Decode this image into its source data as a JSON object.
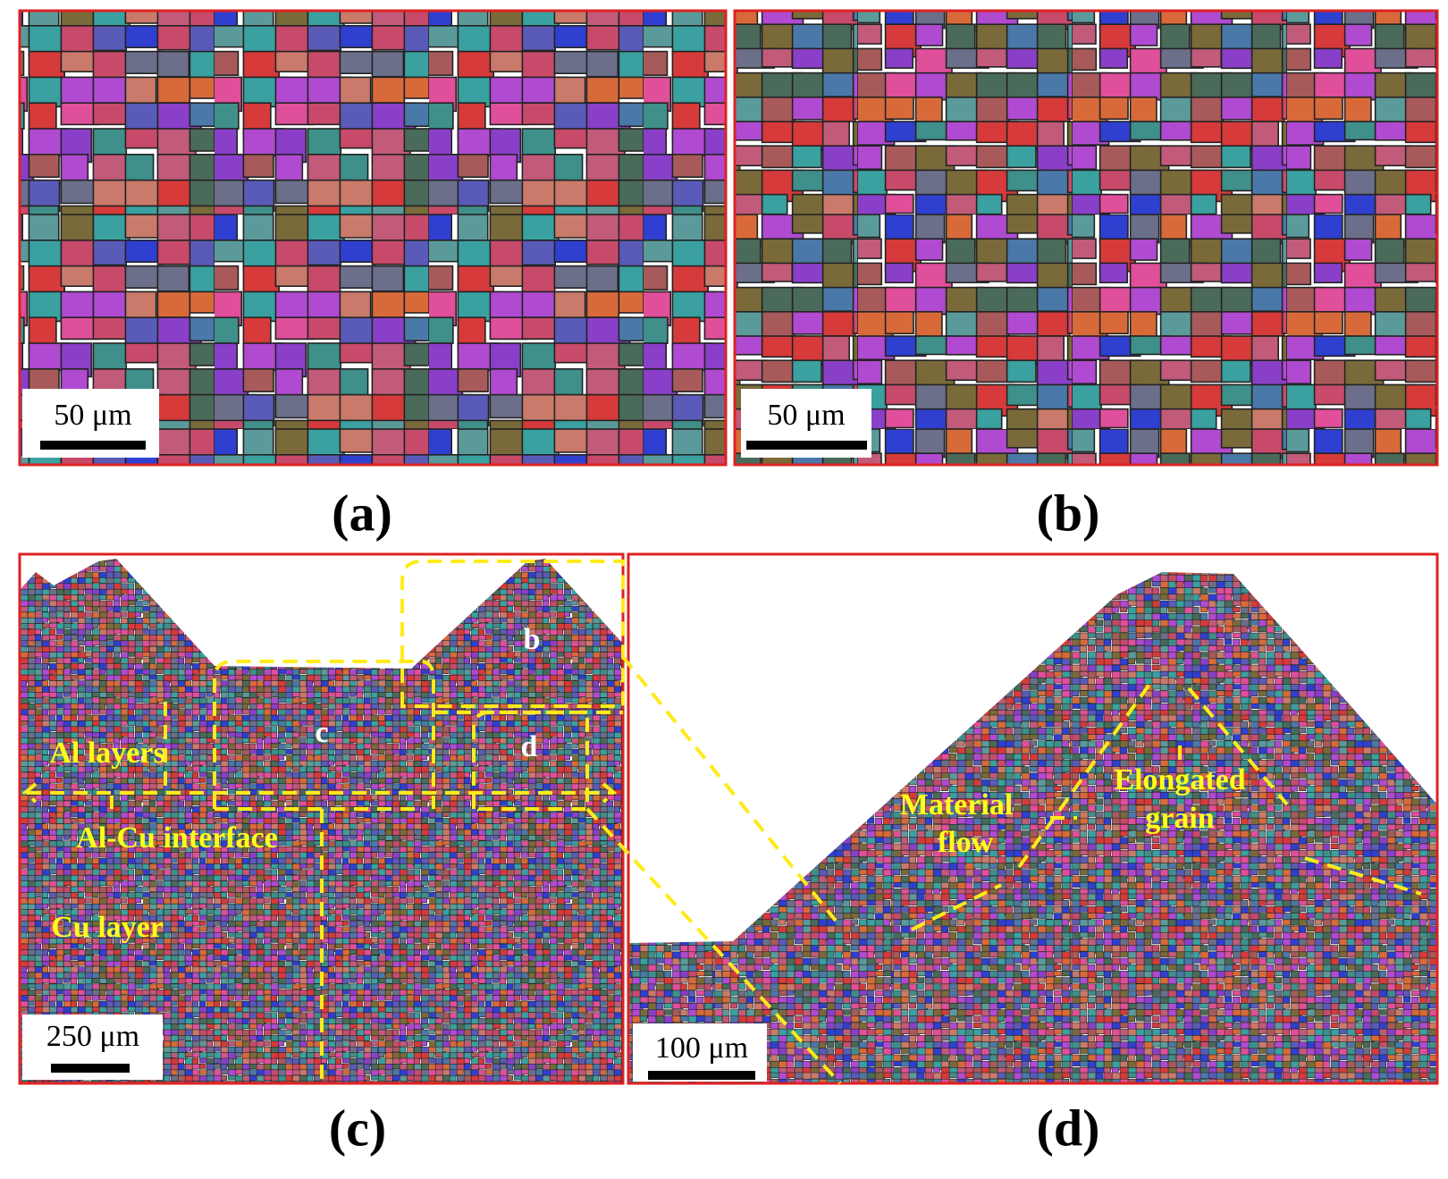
{
  "panels": [
    {
      "label": "(a)",
      "scale_bar": "50 μm"
    },
    {
      "label": "(b)",
      "scale_bar": "50 μm"
    },
    {
      "label": "(c)",
      "scale_bar": "250 μm",
      "annotations": [
        "b",
        "c",
        "d",
        "Al layers",
        "Al-Cu interface",
        "Cu layer"
      ]
    },
    {
      "label": "(d)",
      "scale_bar": "100 μm",
      "annotations": [
        "Material",
        "flow",
        "Elongated",
        "grain"
      ]
    }
  ]
}
